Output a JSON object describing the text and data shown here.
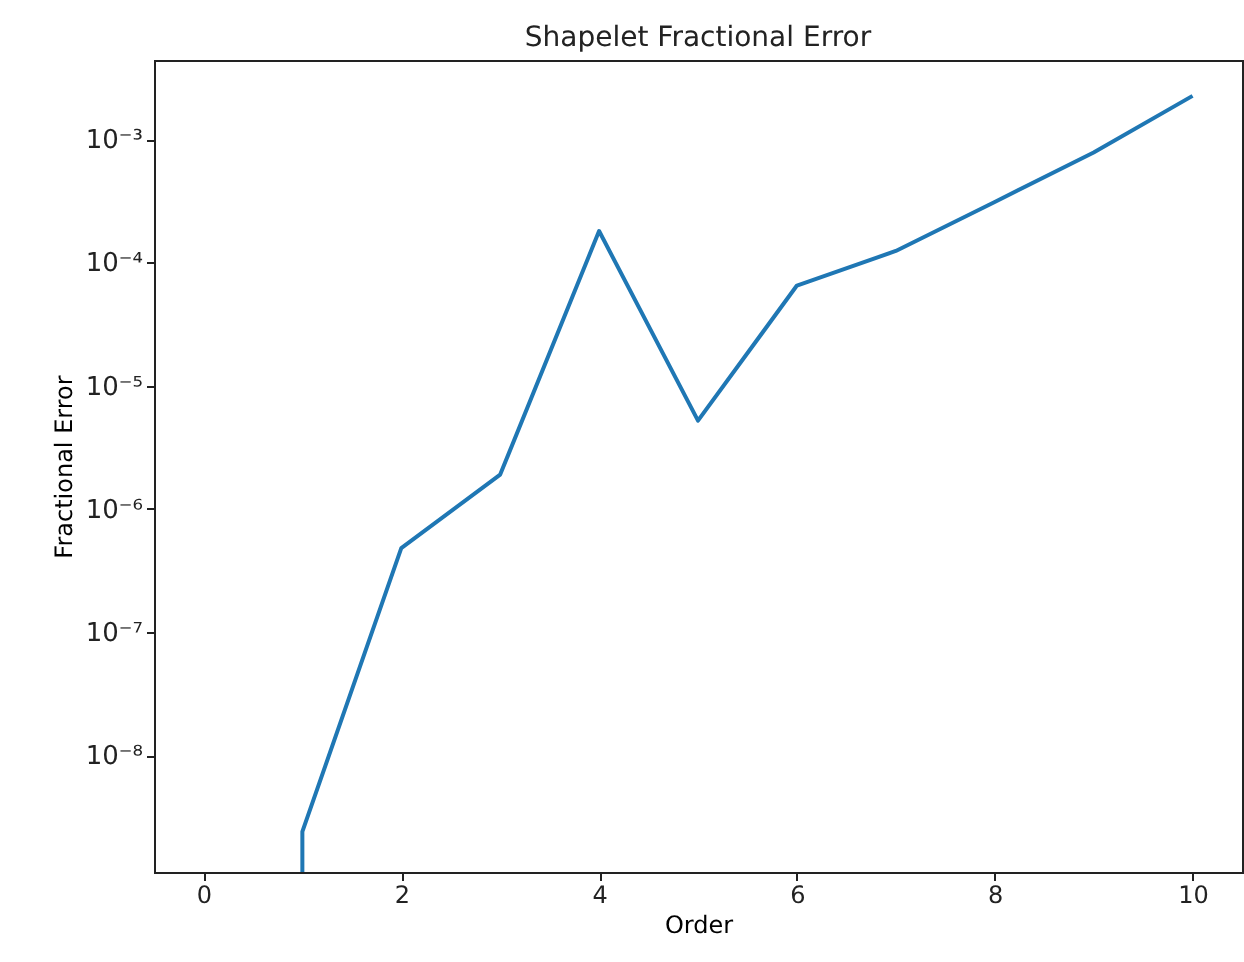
{
  "chart_data": {
    "type": "line",
    "title": "Shapelet Fractional Error",
    "xlabel": "Order",
    "ylabel": "Fractional Error",
    "x": [
      1,
      1,
      2,
      3,
      4,
      5,
      6,
      7,
      8,
      9,
      10
    ],
    "series": [
      {
        "color": "#1f77b4",
        "values": [
          1.13e-09,
          2.4e-09,
          4.8e-07,
          1.9e-06,
          0.00018,
          5.2e-06,
          6.5e-05,
          0.000124,
          0.00031,
          0.00078,
          0.00225
        ]
      }
    ],
    "log": "y",
    "xlim": [
      -0.5,
      10.5
    ],
    "xticks": [
      0,
      2,
      4,
      6,
      8,
      10
    ],
    "ylim": [
      1.13e-09,
      0.0044
    ],
    "yticks": [
      {
        "value": 1e-08,
        "label": "10⁻⁸"
      },
      {
        "value": 1e-07,
        "label": "10⁻⁷"
      },
      {
        "value": 1e-06,
        "label": "10⁻⁶"
      },
      {
        "value": 1e-05,
        "label": "10⁻⁵"
      },
      {
        "value": 0.0001,
        "label": "10⁻⁴"
      },
      {
        "value": 0.001,
        "label": "10⁻³"
      }
    ],
    "grid": false,
    "marker": "none",
    "line_style": "solid"
  }
}
